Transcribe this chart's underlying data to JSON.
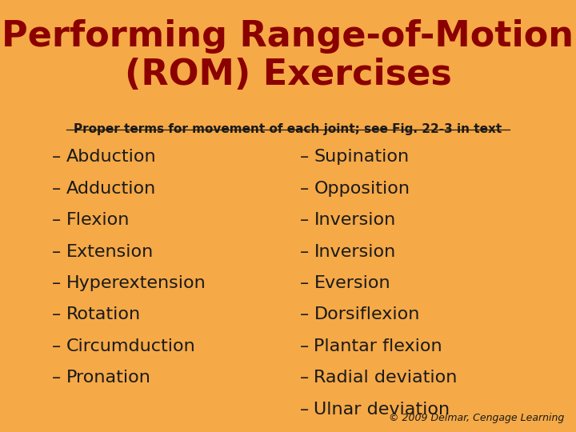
{
  "title_line1": "Performing Range-of-Motion",
  "title_line2": "(ROM) Exercises",
  "subtitle": "Proper terms for movement of each joint; see Fig. 22-3 in text",
  "left_items": [
    "Abduction",
    "Adduction",
    "Flexion",
    "Extension",
    "Hyperextension",
    "Rotation",
    "Circumduction",
    "Pronation"
  ],
  "right_items": [
    "Supination",
    "Opposition",
    "Inversion",
    "Inversion",
    "Eversion",
    "Dorsiflexion",
    "Plantar flexion",
    "Radial deviation",
    "Ulnar deviation"
  ],
  "background_color": "#F5A947",
  "title_color": "#8B0000",
  "subtitle_color": "#1a1a1a",
  "body_color": "#1a1a1a",
  "copyright_text": "© 2009 Delmar, Cengage Learning",
  "title_fontsize": 32,
  "subtitle_fontsize": 11,
  "body_fontsize": 16,
  "copyright_fontsize": 9
}
